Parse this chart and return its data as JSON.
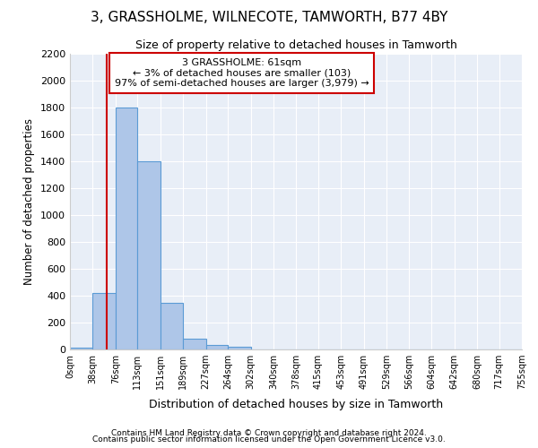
{
  "title": "3, GRASSHOLME, WILNECOTE, TAMWORTH, B77 4BY",
  "subtitle": "Size of property relative to detached houses in Tamworth",
  "xlabel": "Distribution of detached houses by size in Tamworth",
  "ylabel": "Number of detached properties",
  "footer_line1": "Contains HM Land Registry data © Crown copyright and database right 2024.",
  "footer_line2": "Contains public sector information licensed under the Open Government Licence v3.0.",
  "annotation_line1": "3 GRASSHOLME: 61sqm",
  "annotation_line2": "← 3% of detached houses are smaller (103)",
  "annotation_line3": "97% of semi-detached houses are larger (3,979) →",
  "property_size": 61,
  "bin_edges": [
    0,
    38,
    76,
    113,
    151,
    189,
    227,
    264,
    302,
    340,
    378,
    415,
    453,
    491,
    529,
    566,
    604,
    642,
    680,
    717,
    755
  ],
  "bin_counts": [
    15,
    420,
    1800,
    1400,
    350,
    80,
    33,
    20,
    0,
    0,
    0,
    0,
    0,
    0,
    0,
    0,
    0,
    0,
    0,
    0
  ],
  "bar_color": "#aec6e8",
  "bar_edge_color": "#5b9bd5",
  "line_color": "#cc0000",
  "annotation_box_color": "#ffffff",
  "annotation_box_edge": "#cc0000",
  "background_color": "#e8eef7",
  "ylim": [
    0,
    2200
  ],
  "yticks": [
    0,
    200,
    400,
    600,
    800,
    1000,
    1200,
    1400,
    1600,
    1800,
    2000,
    2200
  ]
}
